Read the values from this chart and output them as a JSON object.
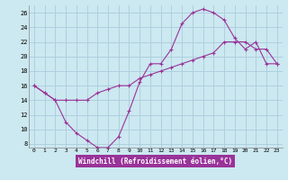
{
  "xlabel": "Windchill (Refroidissement éolien,°C)",
  "bg_color": "#cce8f0",
  "grid_color": "#aaccdd",
  "line_color": "#993399",
  "xlabel_bg": "#993399",
  "xlim": [
    -0.5,
    23.5
  ],
  "ylim": [
    7.5,
    27
  ],
  "yticks": [
    8,
    10,
    12,
    14,
    16,
    18,
    20,
    22,
    24,
    26
  ],
  "xticks": [
    0,
    1,
    2,
    3,
    4,
    5,
    6,
    7,
    8,
    9,
    10,
    11,
    12,
    13,
    14,
    15,
    16,
    17,
    18,
    19,
    20,
    21,
    22,
    23
  ],
  "series1_x": [
    0,
    1,
    2,
    3,
    4,
    5,
    6,
    7,
    8,
    9,
    10,
    11,
    12,
    13,
    14,
    15,
    16,
    17,
    18,
    19,
    20,
    21,
    22,
    23
  ],
  "series1_y": [
    16,
    15,
    14,
    11,
    9.5,
    8.5,
    7.5,
    7.5,
    9,
    12.5,
    16.5,
    19,
    19.0,
    21,
    24.5,
    26,
    26.5,
    26,
    25,
    22.5,
    21,
    22,
    19,
    19
  ],
  "series2_x": [
    0,
    1,
    2,
    3,
    4,
    5,
    6,
    7,
    8,
    9,
    10,
    11,
    12,
    13,
    14,
    15,
    16,
    17,
    18,
    19,
    20,
    21,
    22,
    23
  ],
  "series2_y": [
    16,
    15,
    14,
    14,
    14,
    14,
    15,
    15.5,
    16,
    16,
    17,
    17.5,
    18,
    18.5,
    19,
    19.5,
    20,
    20.5,
    22,
    22,
    22,
    21,
    21,
    19
  ]
}
